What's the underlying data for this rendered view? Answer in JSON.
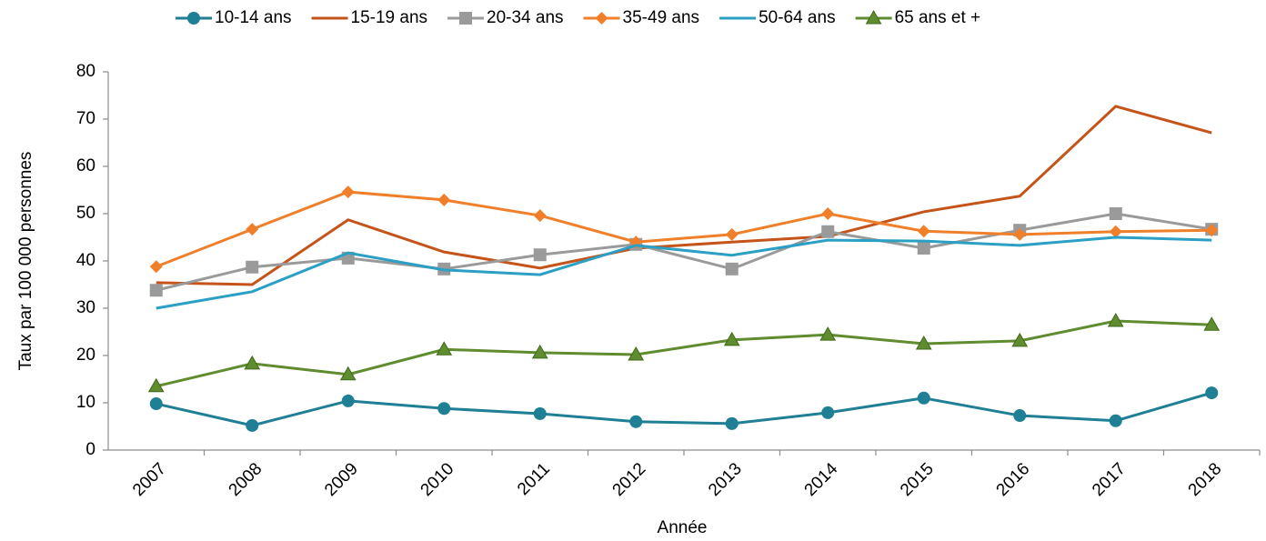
{
  "chart_data": {
    "type": "line",
    "x_label": "Année",
    "y_label": "Taux par 100 000 personnes",
    "categories": [
      "2007",
      "2008",
      "2009",
      "2010",
      "2011",
      "2012",
      "2013",
      "2014",
      "2015",
      "2016",
      "2017",
      "2018"
    ],
    "ylim": [
      0,
      80
    ],
    "yticks": [
      0,
      10,
      20,
      30,
      40,
      50,
      60,
      70,
      80
    ],
    "legend": "top",
    "series": [
      {
        "name": "10-14 ans",
        "color": "#1f7f95",
        "marker": "circle",
        "values": [
          9.8,
          5.2,
          10.4,
          8.8,
          7.7,
          6.0,
          5.6,
          7.9,
          11.0,
          7.3,
          6.2,
          12.1
        ]
      },
      {
        "name": "15-19 ans",
        "color": "#c5541a",
        "marker": "none",
        "values": [
          35.4,
          35.0,
          48.7,
          41.9,
          38.5,
          42.7,
          44.0,
          45.2,
          50.4,
          53.7,
          72.7,
          67.1
        ]
      },
      {
        "name": "20-34 ans",
        "color": "#9a9a9a",
        "marker": "square",
        "values": [
          33.8,
          38.7,
          40.6,
          38.3,
          41.3,
          43.5,
          38.3,
          46.2,
          42.7,
          46.5,
          50.0,
          46.7
        ]
      },
      {
        "name": "35-49 ans",
        "color": "#f07f2a",
        "marker": "diamond",
        "values": [
          38.8,
          46.7,
          54.6,
          52.9,
          49.6,
          44.0,
          45.6,
          50.0,
          46.3,
          45.6,
          46.2,
          46.5
        ]
      },
      {
        "name": "50-64 ans",
        "color": "#2b9fc4",
        "marker": "none",
        "values": [
          30.0,
          33.5,
          41.7,
          38.1,
          37.1,
          43.3,
          41.2,
          44.4,
          44.2,
          43.3,
          45.0,
          44.4
        ]
      },
      {
        "name": "65 ans et +",
        "color": "#5f8c2e",
        "marker": "triangle",
        "values": [
          13.5,
          18.3,
          16.0,
          21.3,
          20.6,
          20.2,
          23.3,
          24.4,
          22.5,
          23.1,
          27.3,
          26.5
        ]
      }
    ]
  }
}
